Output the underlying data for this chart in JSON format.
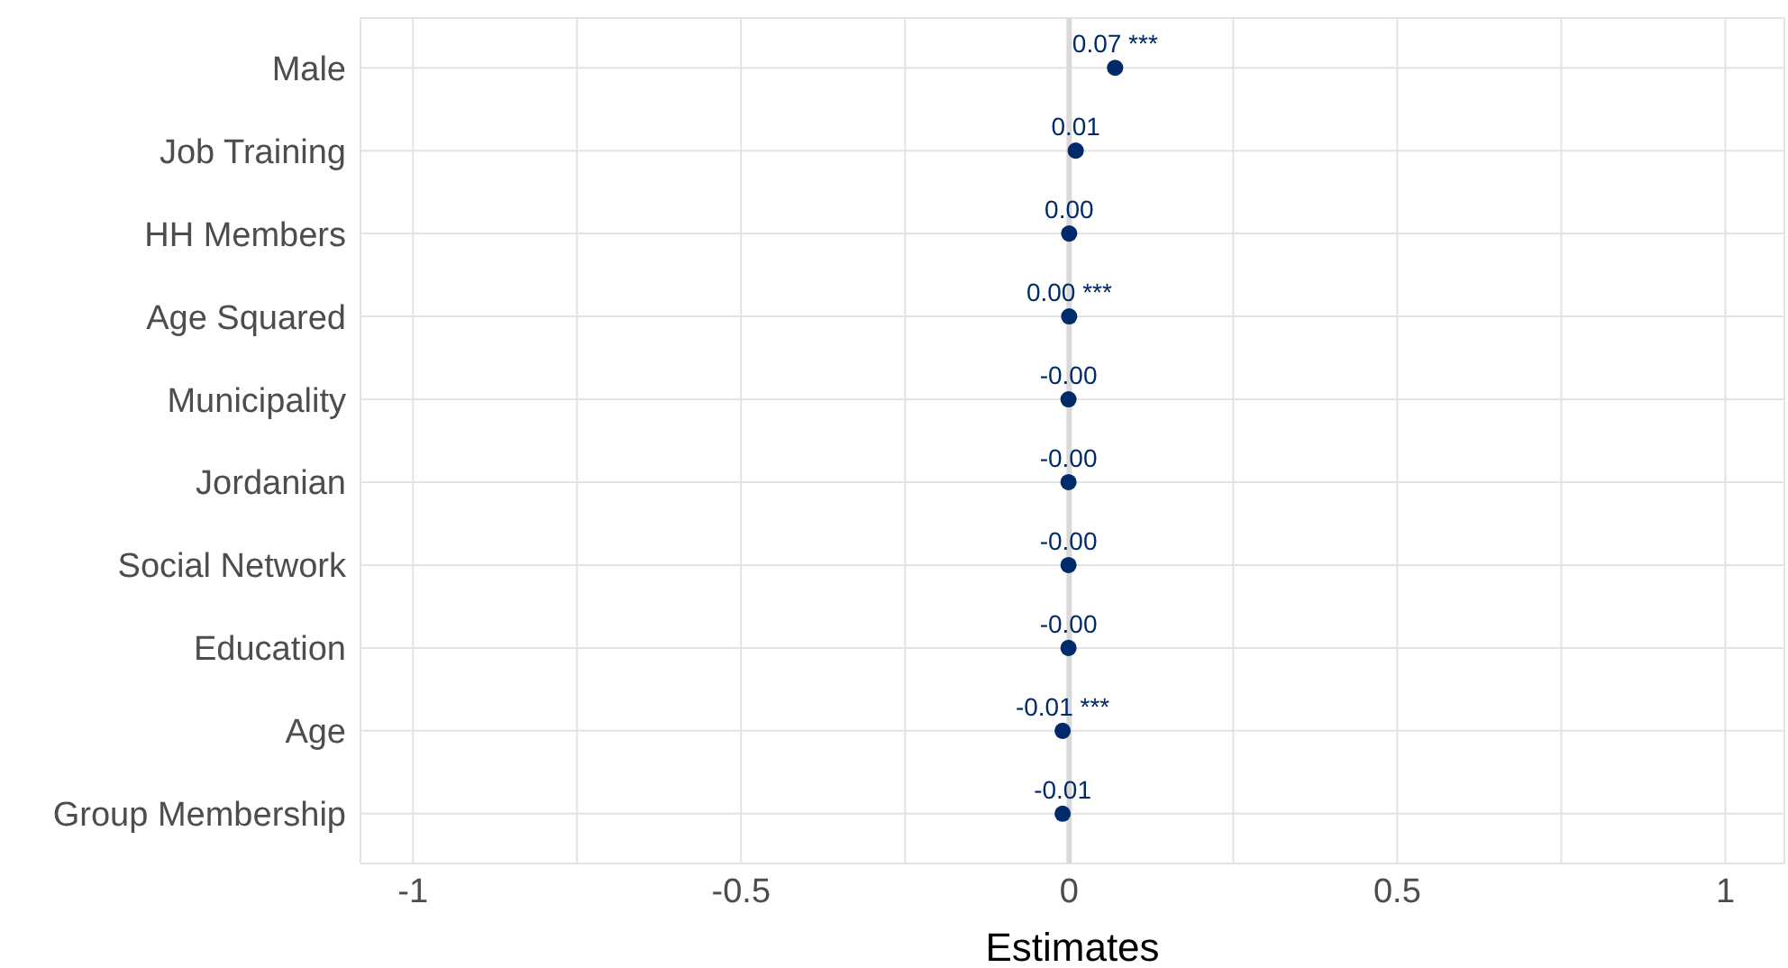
{
  "chart_data": {
    "type": "scatter",
    "orientation": "horizontal",
    "xlabel": "Estimates",
    "categories": [
      "Male",
      "Job Training",
      "HH Members",
      "Age Squared",
      "Municipality",
      "Jordanian",
      "Social Network",
      "Education",
      "Age",
      "Group Membership"
    ],
    "values": [
      0.07,
      0.01,
      0.0,
      0.0,
      -0.001,
      -0.001,
      -0.001,
      -0.001,
      -0.01,
      -0.01
    ],
    "value_labels": [
      "0.07 ***",
      "0.01",
      "0.00",
      "0.00 ***",
      "-0.00",
      "-0.00",
      "-0.00",
      "-0.00",
      "-0.01 ***",
      "-0.01"
    ],
    "color": "#002b6b",
    "marker": "circle",
    "grid": true,
    "xlim": [
      -1.08,
      1.09
    ],
    "xticks": [
      -1,
      {
        "value": -0.75,
        "label": null
      },
      -0.5,
      {
        "value": -0.25,
        "label": null
      },
      0,
      {
        "value": 0.25,
        "label": null
      },
      0.5,
      {
        "value": 0.75,
        "label": null
      },
      1
    ],
    "ref_lines": [
      {
        "axis": "x",
        "value": 0,
        "label": null,
        "color": "#d9d9d9"
      }
    ]
  }
}
